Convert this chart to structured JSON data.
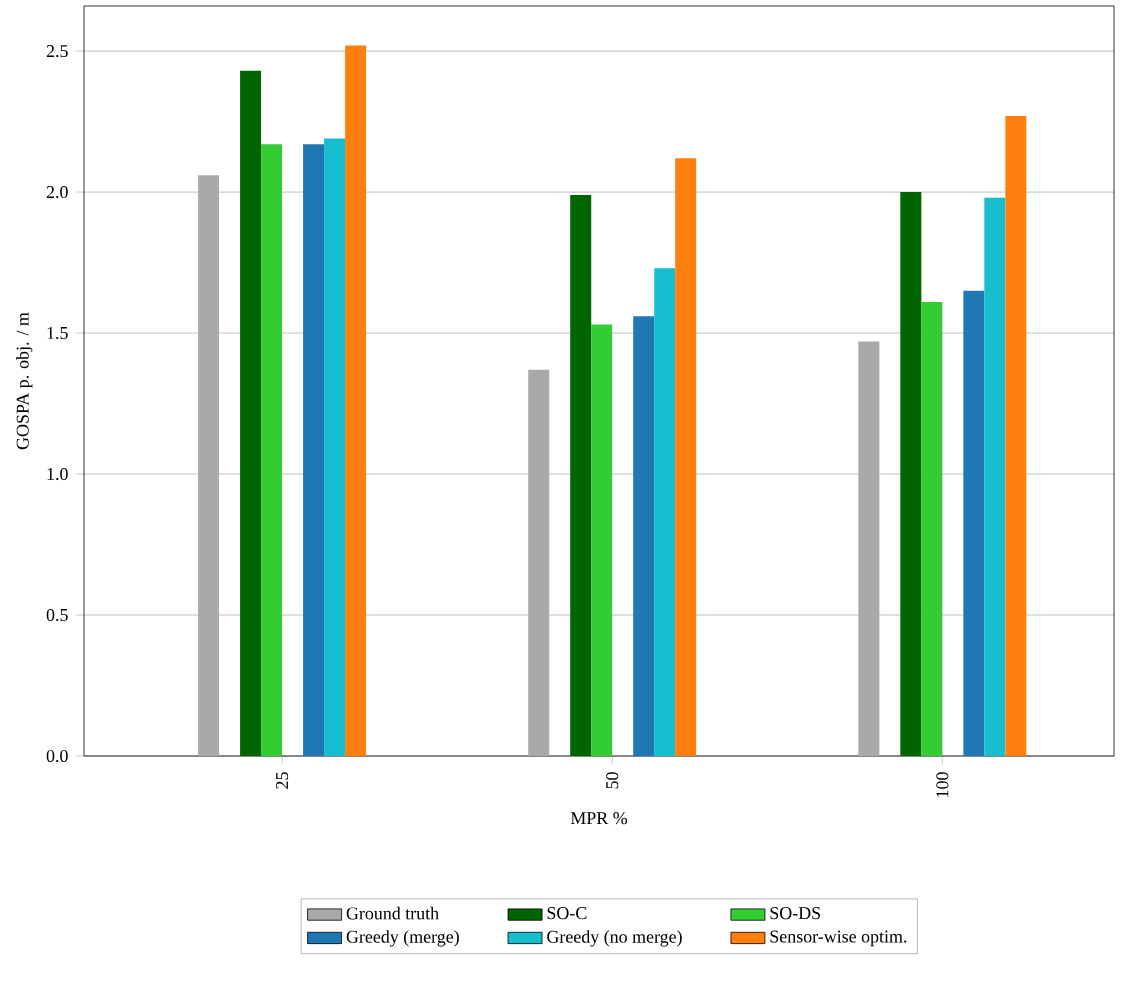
{
  "chart_data": {
    "type": "bar",
    "xlabel": "MPR %",
    "ylabel": "GOSPA p. obj. / m",
    "categories": [
      "25",
      "50",
      "100"
    ],
    "series": [
      {
        "name": "Ground truth",
        "color": "#a9a9a9",
        "values": [
          2.06,
          1.37,
          1.47
        ]
      },
      {
        "name": "SO-C",
        "color": "#006400",
        "values": [
          2.43,
          1.99,
          2.0
        ]
      },
      {
        "name": "SO-DS",
        "color": "#32cd32",
        "values": [
          2.17,
          1.53,
          1.61
        ]
      },
      {
        "name": "Greedy (merge)",
        "color": "#1f77b4",
        "values": [
          2.17,
          1.56,
          1.65
        ]
      },
      {
        "name": "Greedy (no merge)",
        "color": "#17becf",
        "values": [
          2.19,
          1.73,
          1.98
        ]
      },
      {
        "name": "Sensor-wise optim.",
        "color": "#ff7f0e",
        "values": [
          2.52,
          2.12,
          2.27
        ]
      }
    ],
    "ylim": [
      0,
      2.66
    ],
    "yticks": [
      {
        "value": 0,
        "label": "0.0"
      },
      0.5,
      {
        "value": 1,
        "label": "1.0"
      },
      1.5,
      {
        "value": 2,
        "label": "2.0"
      },
      2.5
    ],
    "grid": "y",
    "legend": "bottom"
  }
}
